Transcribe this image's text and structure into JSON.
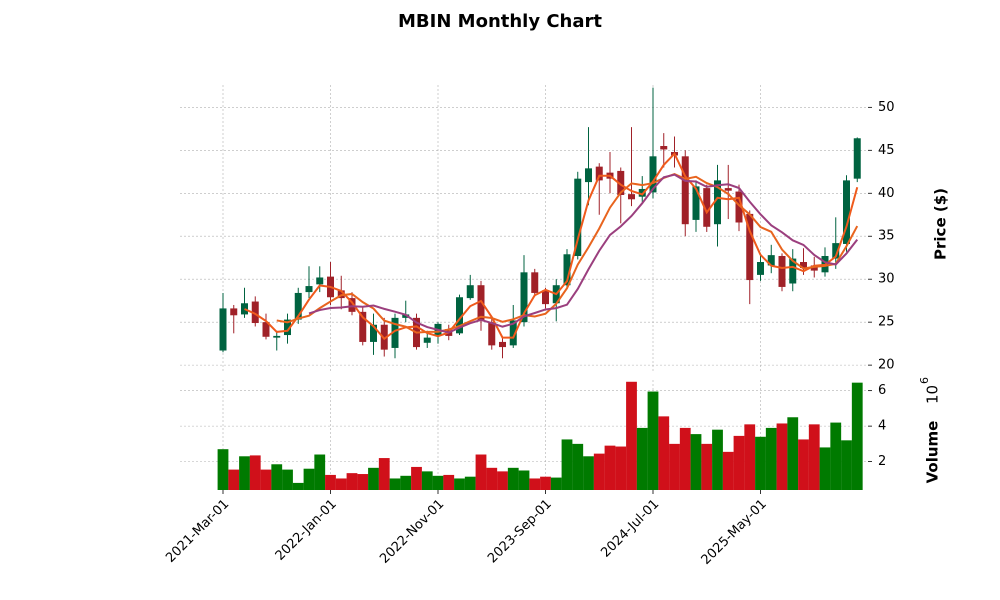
{
  "chart_data": {
    "type": "candlestick",
    "title": "MBIN Monthly Chart",
    "categories": [
      "2021-Mar-01",
      null,
      null,
      null,
      null,
      null,
      null,
      null,
      null,
      null,
      "2022-Jan-01",
      null,
      null,
      null,
      null,
      null,
      null,
      null,
      null,
      null,
      "2022-Nov-01",
      null,
      null,
      null,
      null,
      null,
      null,
      null,
      null,
      null,
      "2023-Sep-01",
      null,
      null,
      null,
      null,
      null,
      null,
      null,
      null,
      null,
      "2024-Jul-01",
      null,
      null,
      null,
      null,
      null,
      null,
      null,
      null,
      null,
      "2025-May-01",
      null,
      null,
      null,
      null,
      null,
      null,
      null,
      null,
      null
    ],
    "open": [
      21.7,
      26.6,
      25.9,
      27.4,
      25,
      23.2,
      23.5,
      25.3,
      28.5,
      29.4,
      30.3,
      28.7,
      27.8,
      26.2,
      22.7,
      24.7,
      22,
      25.5,
      25.5,
      22.6,
      23.4,
      24.2,
      23.7,
      27.8,
      29.3,
      25,
      22.7,
      22.3,
      25,
      30.8,
      28.7,
      27.2,
      29.3,
      32.7,
      41.3,
      43.1,
      42.4,
      42.6,
      39.9,
      39.6,
      40.1,
      45.5,
      44.8,
      44.3,
      36.9,
      40.6,
      36.4,
      40.6,
      40.2,
      37.6,
      30.5,
      31.6,
      32.7,
      29.5,
      32,
      31.6,
      30.8,
      32.4,
      34.1,
      41.7
    ],
    "high": [
      28.4,
      27,
      29,
      28,
      26,
      24,
      26,
      29,
      31.5,
      31.5,
      32,
      30.4,
      28.5,
      26.8,
      26,
      25.5,
      26,
      27.5,
      26,
      24,
      25,
      24.7,
      28.2,
      30.5,
      29.8,
      25.5,
      23.2,
      27,
      32.8,
      31.2,
      29,
      30,
      33.5,
      42.5,
      47.7,
      43.5,
      44.8,
      43,
      47.7,
      42,
      52.3,
      47,
      46.6,
      45,
      41.5,
      41,
      43.3,
      43.3,
      41,
      38,
      33,
      34,
      33,
      33.5,
      33.6,
      32.6,
      33.7,
      37.2,
      42.1,
      46.5
    ],
    "low": [
      21.5,
      23.7,
      25.5,
      24.5,
      23,
      21.7,
      22.5,
      24.8,
      27.8,
      28.5,
      27,
      26.5,
      25.8,
      22.3,
      21.2,
      21,
      20.8,
      25,
      21.8,
      22,
      22.5,
      22.9,
      23.5,
      27.6,
      24,
      21.8,
      20.8,
      22,
      24.5,
      28,
      26.6,
      25.1,
      29,
      32.3,
      38.6,
      37.5,
      40,
      36.5,
      38.5,
      39,
      39.4,
      43,
      43,
      35,
      35.5,
      35.5,
      33.8,
      37,
      35.6,
      27.1,
      29.8,
      30.7,
      28.6,
      28.6,
      30.5,
      30.2,
      30.3,
      31.2,
      33.2,
      41.3
    ],
    "close": [
      26.6,
      25.8,
      27.2,
      24.9,
      23.3,
      23.4,
      25.3,
      28.4,
      29.2,
      30.2,
      27.9,
      27.8,
      26.2,
      22.7,
      24.7,
      21.8,
      25.5,
      25.9,
      22.1,
      23.2,
      24.8,
      23.4,
      27.9,
      29.3,
      25.2,
      22.3,
      22.1,
      25.2,
      30.8,
      28.4,
      27.1,
      29.3,
      32.9,
      41.7,
      42.9,
      41.5,
      41.7,
      39.8,
      39.3,
      40.5,
      44.3,
      45.1,
      44.4,
      36.4,
      40.8,
      36.1,
      41.5,
      40.3,
      36.6,
      29.9,
      32,
      32.8,
      29.1,
      32.4,
      31.3,
      31,
      32.7,
      34.2,
      41.5,
      46.4
    ],
    "volume": [
      2.7,
      1.55,
      2.3,
      2.35,
      1.55,
      1.85,
      1.55,
      0.8,
      1.6,
      2.4,
      1.25,
      1.05,
      1.35,
      1.3,
      1.65,
      2.2,
      1.05,
      1.2,
      1.7,
      1.45,
      1.2,
      1.25,
      1.05,
      1.15,
      2.4,
      1.65,
      1.45,
      1.65,
      1.5,
      1.05,
      1.15,
      1.1,
      3.25,
      3.0,
      2.3,
      2.45,
      2.9,
      2.85,
      6.5,
      3.9,
      5.95,
      4.55,
      3.0,
      3.9,
      3.55,
      3.0,
      3.8,
      2.55,
      3.45,
      4.1,
      3.4,
      3.9,
      4.15,
      4.5,
      3.25,
      4.1,
      2.8,
      4.2,
      3.2,
      6.45
    ],
    "up_color": "#006340",
    "down_color": "#a02128",
    "volume_up_color": "#007a00",
    "volume_down_color": "#d0101a",
    "mav": [
      3,
      6,
      9
    ],
    "mav_colors": [
      "#ef5a1c",
      "#e8641e",
      "#9b3f7e"
    ],
    "ylim": [
      19.2,
      52.6
    ],
    "yticks": [
      20,
      25,
      30,
      35,
      40,
      45,
      50
    ],
    "ylabel": "Price ($)",
    "volume_ylim": [
      0.4,
      6.6
    ],
    "volume_yticks": [
      2,
      4,
      6
    ],
    "volume_ylabel": "Volume",
    "volume_multiplier": {
      "base": "10",
      "exponent": "6"
    },
    "grid": true
  }
}
